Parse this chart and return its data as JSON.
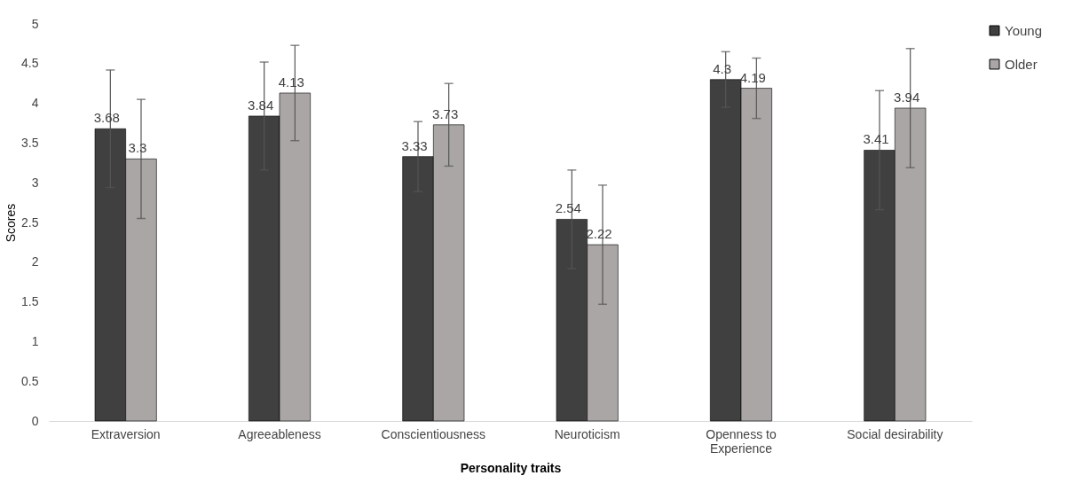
{
  "chart_data": {
    "type": "bar",
    "xlabel": "Personality traits",
    "ylabel": "Scores",
    "categories": [
      "Extraversion",
      "Agreeableness",
      "Conscientiousness",
      "Neuroticism",
      "Openness to Experience",
      "Social desirability"
    ],
    "series": [
      {
        "name": "Young",
        "color": "#404040",
        "values": [
          3.68,
          3.84,
          3.33,
          2.54,
          4.3,
          3.41
        ],
        "errors": [
          0.74,
          0.68,
          0.44,
          0.62,
          0.35,
          0.75
        ]
      },
      {
        "name": "Older",
        "color": "#aaa6a6",
        "values": [
          3.3,
          4.13,
          3.73,
          2.22,
          4.19,
          3.94
        ],
        "errors": [
          0.75,
          0.6,
          0.52,
          0.75,
          0.38,
          0.75
        ]
      }
    ],
    "ylim": [
      0,
      5
    ],
    "yticks": [
      0,
      0.5,
      1,
      1.5,
      2,
      2.5,
      3,
      3.5,
      4,
      4.5,
      5
    ],
    "grid": false,
    "legend": "right",
    "data_labels": true
  }
}
